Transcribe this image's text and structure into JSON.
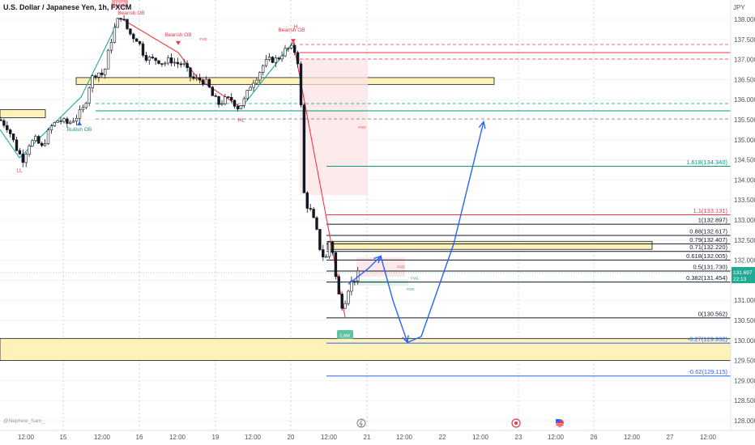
{
  "header": {
    "title": "U.S. Dollar / Japanese Yen, 1h, FXCM",
    "currency": "JPY"
  },
  "watermark": "@Nephew_Sam_",
  "price_badge": {
    "price": "131.697",
    "countdown": "22:13",
    "value": 131.697
  },
  "chart_data": {
    "type": "candlestick",
    "title": "U.S. Dollar / Japanese Yen, 1h, FXCM",
    "ylim": [
      127.8,
      138.3
    ],
    "yticks": [
      "138.000",
      "137.500",
      "137.000",
      "136.500",
      "136.000",
      "135.500",
      "135.000",
      "134.500",
      "134.000",
      "133.500",
      "133.000",
      "132.500",
      "132.000",
      "131.500",
      "131.000",
      "130.500",
      "130.000",
      "129.500",
      "129.000",
      "128.500",
      "128.000"
    ],
    "ytick_values": [
      138,
      137.5,
      137,
      136.5,
      136,
      135.5,
      135,
      134.5,
      134,
      133.5,
      133,
      132.5,
      132,
      131.5,
      131,
      130.5,
      130,
      129.5,
      129,
      128.5,
      128
    ],
    "xlim": [
      0,
      910
    ],
    "xticks": [
      {
        "label": "12:00",
        "x": 32
      },
      {
        "label": "15",
        "x": 78
      },
      {
        "label": "12:00",
        "x": 126
      },
      {
        "label": "16",
        "x": 172
      },
      {
        "label": "12:00",
        "x": 219
      },
      {
        "label": "19",
        "x": 266
      },
      {
        "label": "12:00",
        "x": 312
      },
      {
        "label": "20",
        "x": 359
      },
      {
        "label": "12:00",
        "x": 406
      },
      {
        "label": "21",
        "x": 453
      },
      {
        "label": "12:00",
        "x": 499
      },
      {
        "label": "22",
        "x": 546
      },
      {
        "label": "12:00",
        "x": 593
      },
      {
        "label": "23",
        "x": 640
      },
      {
        "label": "12:00",
        "x": 686
      },
      {
        "label": "26",
        "x": 733
      },
      {
        "label": "12:00",
        "x": 780
      },
      {
        "label": "27",
        "x": 827
      },
      {
        "label": "12:00",
        "x": 874
      }
    ],
    "vgrid_x": [
      78,
      172,
      266,
      359,
      453,
      640,
      733
    ],
    "close_path": [
      [
        0,
        135.5
      ],
      [
        10,
        135.3
      ],
      [
        20,
        134.8
      ],
      [
        28,
        134.5
      ],
      [
        36,
        134.9
      ],
      [
        44,
        135.0
      ],
      [
        52,
        134.8
      ],
      [
        62,
        135.3
      ],
      [
        72,
        135.5
      ],
      [
        84,
        135.4
      ],
      [
        96,
        135.6
      ],
      [
        104,
        135.8
      ],
      [
        112,
        136.5
      ],
      [
        120,
        136.7
      ],
      [
        128,
        136.6
      ],
      [
        134,
        137.2
      ],
      [
        140,
        137.7
      ],
      [
        146,
        138.0
      ],
      [
        150,
        138.1
      ],
      [
        156,
        137.8
      ],
      [
        162,
        137.6
      ],
      [
        170,
        137.5
      ],
      [
        178,
        137.1
      ],
      [
        186,
        137.0
      ],
      [
        194,
        137.0
      ],
      [
        202,
        136.9
      ],
      [
        210,
        137.0
      ],
      [
        218,
        136.9
      ],
      [
        226,
        136.9
      ],
      [
        234,
        136.6
      ],
      [
        240,
        136.5
      ],
      [
        248,
        136.5
      ],
      [
        256,
        136.4
      ],
      [
        262,
        136.1
      ],
      [
        270,
        135.9
      ],
      [
        278,
        136.0
      ],
      [
        286,
        136.0
      ],
      [
        294,
        135.8
      ],
      [
        302,
        136.0
      ],
      [
        310,
        136.4
      ],
      [
        318,
        136.6
      ],
      [
        326,
        136.9
      ],
      [
        334,
        137.0
      ],
      [
        342,
        137.0
      ],
      [
        350,
        137.2
      ],
      [
        358,
        137.3
      ],
      [
        364,
        137.2
      ],
      [
        370,
        136.8
      ],
      [
        372,
        135.5
      ],
      [
        374,
        133.8
      ],
      [
        378,
        133.4
      ],
      [
        384,
        133.2
      ],
      [
        390,
        132.8
      ],
      [
        396,
        132.2
      ],
      [
        402,
        132.0
      ],
      [
        408,
        132.6
      ],
      [
        412,
        132.0
      ],
      [
        416,
        131.3
      ],
      [
        420,
        131.0
      ],
      [
        424,
        130.8
      ],
      [
        428,
        131.2
      ],
      [
        432,
        131.4
      ],
      [
        436,
        131.5
      ],
      [
        440,
        131.6
      ],
      [
        444,
        131.7
      ]
    ],
    "fib_levels": [
      {
        "label": "1.618(134.340)",
        "value": 134.34,
        "color": "#089981"
      },
      {
        "label": "1.1(133.131)",
        "value": 133.131,
        "color": "#f23645"
      },
      {
        "label": "1(132.897)",
        "value": 132.897,
        "color": "#131722"
      },
      {
        "label": "0.88(132.617)",
        "value": 132.617,
        "color": "#131722"
      },
      {
        "label": "0.79(132.407)",
        "value": 132.407,
        "color": "#131722"
      },
      {
        "label": "0.71(132.220)",
        "value": 132.22,
        "color": "#131722"
      },
      {
        "label": "0.618(132.005)",
        "value": 132.005,
        "color": "#131722"
      },
      {
        "label": "0.5(131.730)",
        "value": 131.73,
        "color": "#131722"
      },
      {
        "label": "0.382(131.454)",
        "value": 131.454,
        "color": "#131722"
      },
      {
        "label": "0(130.562)",
        "value": 130.562,
        "color": "#131722"
      },
      {
        "label": "-0.27(129.932)",
        "value": 129.932,
        "color": "#2962ff"
      },
      {
        "label": "-0.62(129.115)",
        "value": 129.115,
        "color": "#2962ff"
      }
    ],
    "zones": [
      {
        "x0": 0,
        "x1": 56,
        "y0": 135.75,
        "y1": 135.55,
        "color": "#fff2b8"
      },
      {
        "x0": 94,
        "x1": 610,
        "y0": 136.55,
        "y1": 136.38,
        "color": "#fff2b8"
      },
      {
        "x0": 404,
        "x1": 805,
        "y0": 132.47,
        "y1": 132.27,
        "color": "#fff2b8"
      },
      {
        "x0": 0,
        "x1": 932,
        "y0": 130.05,
        "y1": 129.5,
        "color": "#fff2b8"
      }
    ],
    "annotations": {
      "structure": [
        {
          "text": "LL",
          "x": 24,
          "value": 134.2,
          "color": "#f23645"
        },
        {
          "text": "Bullish OB",
          "x": 98,
          "value": 135.22,
          "color": "#089981"
        },
        {
          "text": "Bearish OB",
          "x": 162,
          "value": 138.12,
          "color": "#f23645"
        },
        {
          "text": "Bearish OB",
          "x": 220,
          "value": 137.58,
          "color": "#f23645"
        },
        {
          "text": "HL",
          "x": 298,
          "value": 135.45,
          "color": "#f23645"
        },
        {
          "text": "Bearish OB",
          "x": 360,
          "value": 137.7,
          "color": "#f23645"
        },
        {
          "text": "H",
          "x": 365,
          "value": 137.78,
          "color": "#f23645"
        }
      ],
      "badges": [
        {
          "text": "High",
          "x": 148,
          "value": 138.36,
          "bg": "#f7a5ab",
          "fg": "#ffffff"
        },
        {
          "text": "Low",
          "x": 426,
          "value": 130.1,
          "bg": "#62c3a4",
          "fg": "#ffffff"
        }
      ],
      "fvg": [
        {
          "text": "FVG",
          "x": 251,
          "value": 137.48,
          "color": "#f23645"
        },
        {
          "text": "FVG",
          "x": 447,
          "value": 135.28,
          "color": "#f23645"
        },
        {
          "text": "FVG",
          "x": 495,
          "value": 131.8,
          "color": "#f23645"
        },
        {
          "text": "FVG",
          "x": 512,
          "value": 131.52,
          "color": "#089981"
        },
        {
          "text": "FVG",
          "x": 507,
          "value": 131.25,
          "color": "#089981"
        }
      ]
    },
    "projection_path": [
      [
        430,
        131.4
      ],
      [
        455,
        131.8
      ],
      [
        470,
        132.1
      ],
      [
        485,
        131.0
      ],
      [
        503,
        129.95
      ],
      [
        520,
        130.1
      ],
      [
        560,
        132.4
      ],
      [
        597,
        135.45
      ]
    ]
  }
}
